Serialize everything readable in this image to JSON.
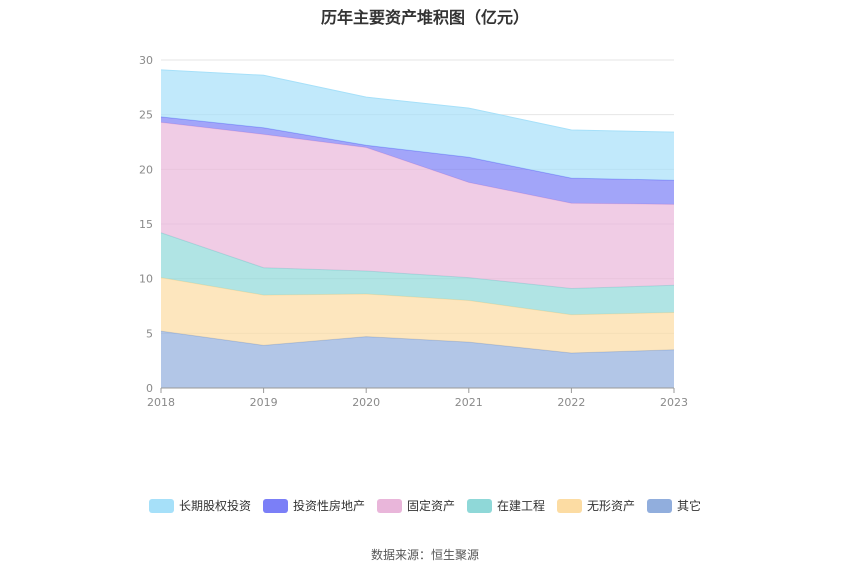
{
  "chart_data": {
    "type": "area",
    "stacked": true,
    "title": "历年主要资产堆积图（亿元）",
    "source": "数据来源：恒生聚源",
    "x": [
      "2018",
      "2019",
      "2020",
      "2021",
      "2022",
      "2023"
    ],
    "ylim": [
      0,
      30
    ],
    "yticks": [
      0,
      5,
      10,
      15,
      20,
      25,
      30
    ],
    "grid": true,
    "legend_position": "bottom",
    "series": [
      {
        "name": "其它",
        "color": "#91aedd",
        "values": [
          5.2,
          3.9,
          4.7,
          4.2,
          3.2,
          3.5
        ]
      },
      {
        "name": "无形资产",
        "color": "#fcdca3",
        "values": [
          4.9,
          4.6,
          3.9,
          3.8,
          3.5,
          3.4
        ]
      },
      {
        "name": "在建工程",
        "color": "#8fd8d8",
        "values": [
          4.1,
          2.5,
          2.1,
          2.1,
          2.4,
          2.5
        ]
      },
      {
        "name": "固定资产",
        "color": "#e9b6da",
        "values": [
          10.1,
          12.2,
          11.3,
          8.7,
          7.8,
          7.4
        ]
      },
      {
        "name": "投资性房地产",
        "color": "#7b7ff7",
        "values": [
          0.5,
          0.6,
          0.2,
          2.3,
          2.3,
          2.2
        ]
      },
      {
        "name": "长期股权投资",
        "color": "#a6e0f9",
        "values": [
          4.3,
          4.8,
          4.4,
          4.5,
          4.4,
          4.4
        ]
      }
    ],
    "legend_order": [
      "长期股权投资",
      "投资性房地产",
      "固定资产",
      "在建工程",
      "无形资产",
      "其它"
    ]
  }
}
